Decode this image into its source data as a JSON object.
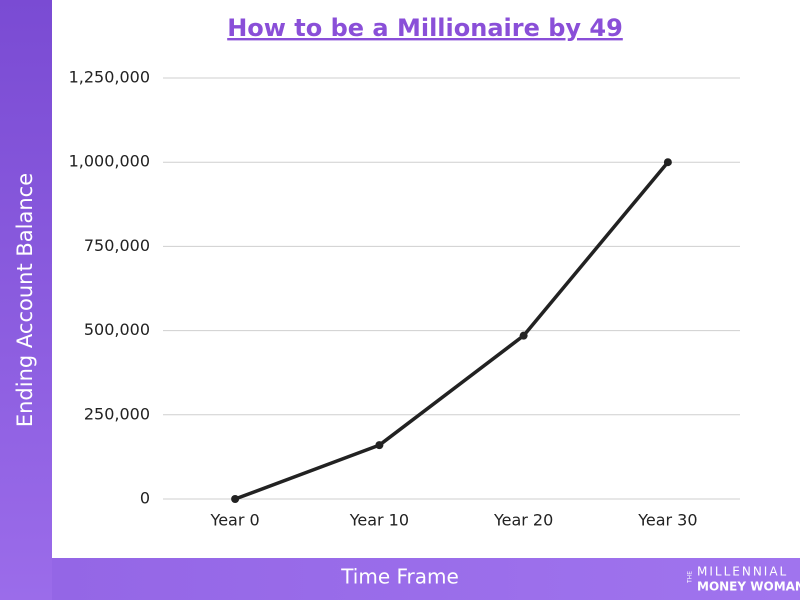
{
  "chart_data": {
    "type": "line",
    "title": "How to be a Millionaire by 49",
    "x_label": "Time Frame",
    "y_label": "Ending Account Balance",
    "categories": [
      "Year 0",
      "Year 10",
      "Year 20",
      "Year 30"
    ],
    "series": [
      {
        "color": "#222222",
        "values": [
          0,
          160000,
          485000,
          1000000
        ]
      }
    ],
    "ylim": [
      0,
      1250000
    ],
    "yticks": [
      0,
      {
        "value": 250000,
        "label": "250,000"
      },
      {
        "value": 500000,
        "label": "500,000"
      },
      {
        "value": 750000,
        "label": "750,000"
      },
      {
        "value": 1000000,
        "label": "1,000,000"
      },
      {
        "value": 1250000,
        "label": "1,250,000"
      }
    ],
    "grid": true,
    "logo": {
      "prefix": "THE",
      "line1": "MILLENNIAL",
      "line2": "MONEY WOMAN"
    }
  }
}
